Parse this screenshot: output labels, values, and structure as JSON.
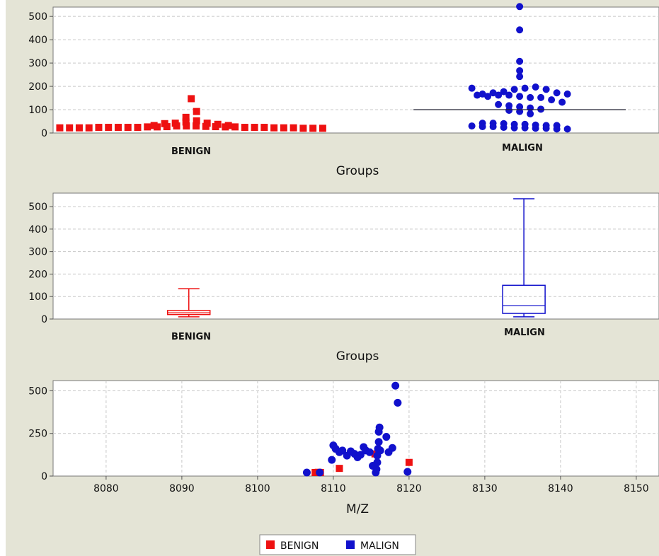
{
  "colors": {
    "benign": "#ee1111",
    "malign": "#1111cc",
    "panel_bg": "#e4e4d6",
    "plot_bg": "#ffffff",
    "grid": "#c8c8c8"
  },
  "legend": {
    "benign_label": "BENIGN",
    "malign_label": "MALIGN",
    "position": "bottom-center"
  },
  "chart_data": [
    {
      "type": "scatter",
      "variant": "dot-plot",
      "xlabel": "Groups",
      "ylabel": "",
      "categories": [
        "BENIGN",
        "MALIGN"
      ],
      "ylim": [
        0,
        540
      ],
      "yticks": [
        0,
        100,
        200,
        300,
        400,
        500
      ],
      "grid": true,
      "series": [
        {
          "name": "BENIGN",
          "marker": "square",
          "values": [
            10,
            10,
            10,
            10,
            12,
            12,
            12,
            12,
            12,
            14,
            14,
            15,
            18,
            20,
            28,
            30,
            35,
            40,
            55,
            80,
            135,
            30,
            25,
            20,
            18,
            18,
            16,
            15,
            14,
            14,
            12,
            12,
            12,
            10,
            10,
            10,
            8,
            8,
            8
          ]
        },
        {
          "name": "MALIGN",
          "marker": "circle",
          "values": [
            530,
            430,
            295,
            255,
            230,
            180,
            150,
            145,
            150,
            155,
            160,
            165,
            175,
            180,
            185,
            175,
            160,
            155,
            150,
            145,
            140,
            140,
            130,
            120,
            110,
            105,
            100,
            95,
            90,
            85,
            80,
            70,
            30,
            30,
            28,
            25,
            25,
            22,
            20,
            20,
            18,
            15,
            15,
            12,
            10,
            10,
            8,
            8,
            5,
            5
          ],
          "mean": 100
        }
      ]
    },
    {
      "type": "box",
      "xlabel": "Groups",
      "ylabel": "",
      "categories": [
        "BENIGN",
        "MALIGN"
      ],
      "ylim": [
        0,
        560
      ],
      "yticks": [
        0,
        100,
        200,
        300,
        400,
        500
      ],
      "grid": true,
      "boxes": [
        {
          "name": "BENIGN",
          "min": 10,
          "q1": 20,
          "median": 28,
          "q3": 38,
          "max": 135
        },
        {
          "name": "MALIGN",
          "min": 10,
          "q1": 25,
          "median": 60,
          "q3": 150,
          "max": 535
        }
      ]
    },
    {
      "type": "scatter",
      "xlabel": "M/Z",
      "ylabel": "",
      "xlim": [
        8073,
        8153
      ],
      "ylim": [
        0,
        560
      ],
      "xticks": [
        8080,
        8090,
        8100,
        8110,
        8120,
        8130,
        8140,
        8150
      ],
      "yticks": [
        0,
        250,
        500
      ],
      "grid": true,
      "series": [
        {
          "name": "BENIGN",
          "marker": "square",
          "x": [
            8107.6,
            8108.0,
            8108.3,
            8110.8,
            8115.5,
            8120.0
          ],
          "y": [
            20,
            22,
            20,
            45,
            130,
            80
          ]
        },
        {
          "name": "MALIGN",
          "marker": "circle",
          "x": [
            8106.5,
            8108.2,
            8109.8,
            8110.0,
            8110.3,
            8110.8,
            8111.2,
            8111.8,
            8112.3,
            8112.8,
            8113.2,
            8113.6,
            8114.0,
            8114.3,
            8114.8,
            8115.2,
            8115.6,
            8115.7,
            8115.8,
            8115.8,
            8115.9,
            8116.0,
            8116.0,
            8116.1,
            8116.2,
            8117.0,
            8117.3,
            8117.8,
            8118.2,
            8118.5,
            8119.8
          ],
          "y": [
            10,
            18,
            95,
            180,
            160,
            140,
            150,
            120,
            145,
            130,
            110,
            125,
            170,
            150,
            140,
            60,
            20,
            40,
            80,
            120,
            160,
            200,
            260,
            285,
            150,
            230,
            140,
            165,
            530,
            430,
            25
          ]
        }
      ]
    }
  ]
}
